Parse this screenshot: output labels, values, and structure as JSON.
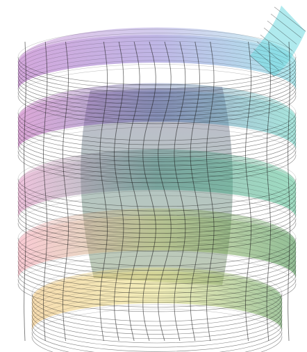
{
  "figure": {
    "kind": "3d-surface-plot",
    "surface": "helicoidal-ribbon",
    "turns_visible": 4,
    "background_color": "#ffffff",
    "mesh_line_color": "#1a1a1a",
    "surface_opacity": 0.55,
    "gradient_colors": {
      "top": "#8a7ad0",
      "upper_left": "#b060c0",
      "upper_right": "#6fd8e0",
      "middle": "#4aa890",
      "lower_left": "#f4a0b0",
      "lower_right": "#3a8a40",
      "bottom": "#f0d070"
    }
  }
}
